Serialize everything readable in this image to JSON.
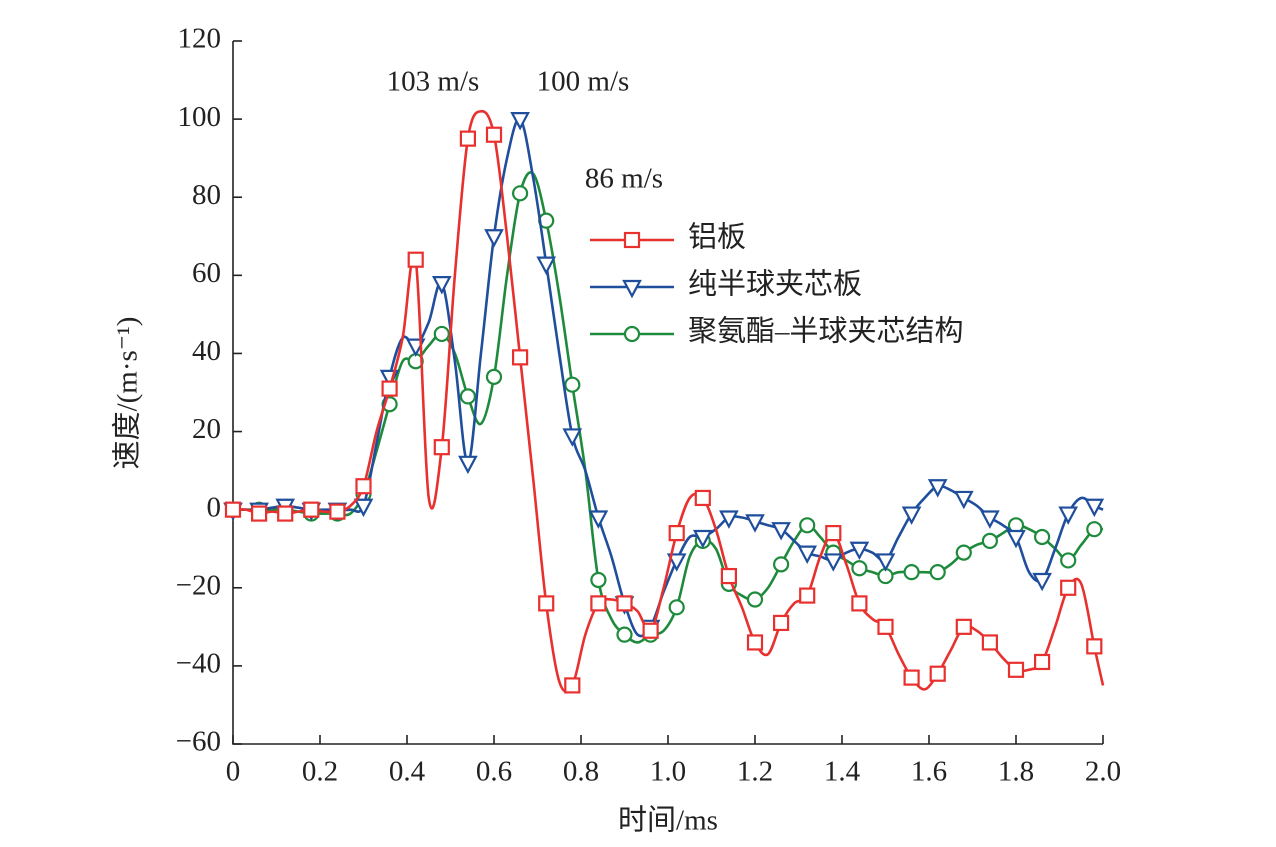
{
  "chart_data": {
    "type": "line",
    "xlabel": "时间/ms",
    "ylabel": "速度/(m·s⁻¹)",
    "x": [
      0,
      0.03,
      0.06,
      0.09,
      0.12,
      0.15,
      0.18,
      0.21,
      0.24,
      0.27,
      0.3,
      0.33,
      0.36,
      0.39,
      0.42,
      0.45,
      0.48,
      0.51,
      0.54,
      0.57,
      0.6,
      0.63,
      0.66,
      0.69,
      0.72,
      0.75,
      0.78,
      0.81,
      0.84,
      0.87,
      0.9,
      0.93,
      0.96,
      0.99,
      1.02,
      1.05,
      1.08,
      1.11,
      1.14,
      1.17,
      1.2,
      1.23,
      1.26,
      1.29,
      1.32,
      1.35,
      1.38,
      1.41,
      1.44,
      1.47,
      1.5,
      1.53,
      1.56,
      1.59,
      1.62,
      1.65,
      1.68,
      1.71,
      1.74,
      1.77,
      1.8,
      1.83,
      1.86,
      1.89,
      1.92,
      1.95,
      1.98,
      2.0
    ],
    "marker_every": 2,
    "series": [
      {
        "name": "铝板",
        "color": "#e8312f",
        "marker": "square",
        "values": [
          0,
          0,
          -1,
          -0.5,
          -1,
          -0.5,
          0,
          -0.5,
          -0.5,
          1,
          6,
          20,
          31,
          44,
          64,
          3,
          16,
          60,
          95,
          102,
          96,
          70,
          39,
          8,
          -24,
          -44,
          -45,
          -32,
          -24,
          -23,
          -24,
          -26,
          -31,
          -20,
          -6,
          3,
          3,
          -5,
          -17,
          -25,
          -34,
          -37,
          -29,
          -24,
          -22,
          -12,
          -6,
          -14,
          -24,
          -28,
          -30,
          -37,
          -43,
          -46,
          -42,
          -36,
          -30,
          -31,
          -34,
          -38,
          -41,
          -41,
          -39,
          -30,
          -20,
          -19,
          -35,
          -45
        ]
      },
      {
        "name": "纯半球夹芯板",
        "color": "#1f4e9c",
        "marker": "triangle-down",
        "values": [
          0,
          0,
          0,
          0.5,
          1,
          0.5,
          0,
          0,
          0,
          0,
          1,
          17,
          34,
          44,
          42,
          48,
          58,
          38,
          12,
          40,
          70,
          90,
          100,
          85,
          63,
          40,
          19,
          10,
          -2,
          -12,
          -24,
          -32,
          -30,
          -21,
          -13,
          -7,
          -7,
          -5,
          -2,
          -2,
          -3,
          -4,
          -5,
          -8,
          -11,
          -12,
          -13,
          -11,
          -10,
          -11,
          -13,
          -7,
          -1,
          3,
          6,
          5,
          3,
          1,
          -2,
          -4,
          -7,
          -16,
          -18,
          -10,
          -1,
          3,
          1,
          0
        ]
      },
      {
        "name": "聚氨酯–半球夹芯结构",
        "color": "#1e8a3c",
        "marker": "circle",
        "values": [
          0,
          0,
          0,
          0,
          0,
          -0.5,
          -1,
          -1,
          -1,
          -1,
          4,
          15,
          27,
          38,
          38,
          42,
          45,
          40,
          29,
          22,
          34,
          60,
          81,
          86,
          74,
          55,
          32,
          10,
          -18,
          -28,
          -32,
          -34,
          -32,
          -31,
          -25,
          -12,
          -8,
          -10,
          -19,
          -22,
          -23,
          -20,
          -14,
          -8,
          -4,
          -7,
          -11,
          -13,
          -15,
          -16,
          -17,
          -16,
          -16,
          -16,
          -16,
          -14,
          -11,
          -9,
          -8,
          -6,
          -4,
          -5,
          -7,
          -10,
          -13,
          -9,
          -5,
          -5
        ]
      }
    ],
    "annotations": [
      "103 m/s",
      "100 m/s",
      "86 m/s"
    ],
    "xlim": [
      0,
      2.0
    ],
    "xticks": [
      0,
      0.2,
      0.4,
      0.6,
      0.8,
      {
        "value": 1,
        "label": "1.0"
      },
      1.2,
      1.4,
      1.6,
      1.8,
      {
        "value": 2,
        "label": "2.0"
      }
    ],
    "ylim": [
      -60,
      120
    ],
    "yticks": [
      {
        "value": -60,
        "label": "−60"
      },
      {
        "value": -40,
        "label": "−40"
      },
      {
        "value": -20,
        "label": "−20"
      },
      0,
      20,
      40,
      60,
      80,
      100,
      120
    ],
    "grid": false,
    "legend": "right"
  }
}
